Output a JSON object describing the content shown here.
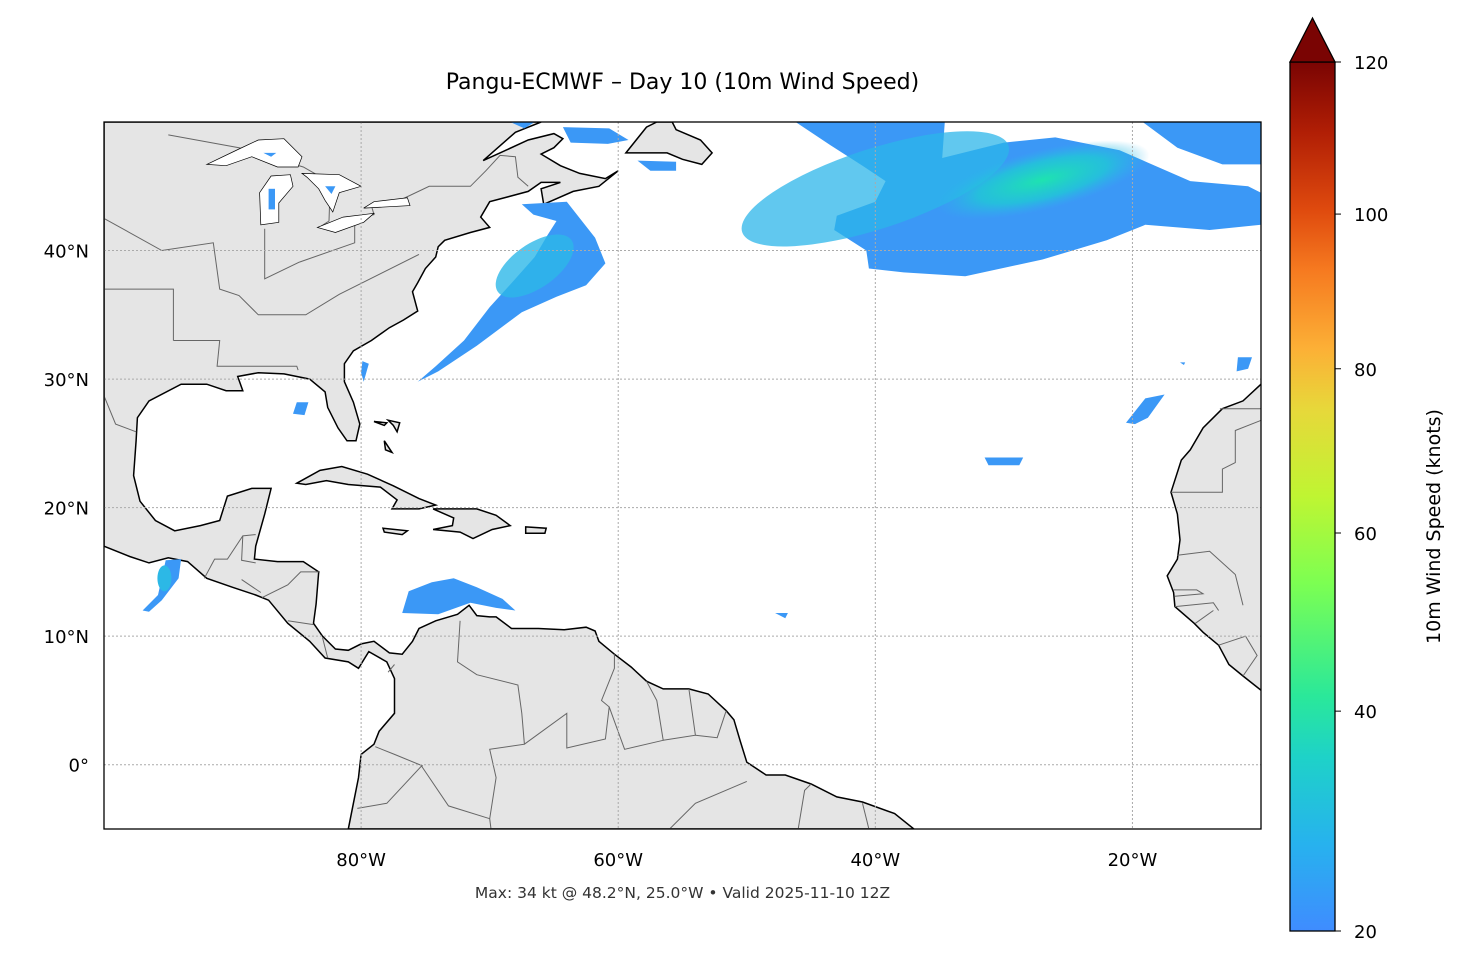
{
  "title": "Pangu-ECMWF – Day 10 (10m Wind Speed)",
  "footer": "Max: 34 kt @ 48.2°N, 25.0°W • Valid 2025-11-10 12Z",
  "map": {
    "projection": "PlateCarree",
    "lon_range": [
      -100,
      -10
    ],
    "lat_range": [
      -5,
      50
    ],
    "gridlines": "dotted",
    "land_color": "#e5e5e5",
    "coast_color": "#000000",
    "border_color": "#666666",
    "lon_ticks": [
      {
        "value": -80,
        "label": "80°W"
      },
      {
        "value": -60,
        "label": "60°W"
      },
      {
        "value": -40,
        "label": "40°W"
      },
      {
        "value": -20,
        "label": "20°W"
      }
    ],
    "lat_ticks": [
      {
        "value": 40,
        "label": "40°N"
      },
      {
        "value": 30,
        "label": "30°N"
      },
      {
        "value": 20,
        "label": "20°N"
      },
      {
        "value": 10,
        "label": "10°N"
      },
      {
        "value": 0,
        "label": "0°"
      }
    ],
    "max_wind": {
      "value_kt": 34,
      "lat": 48.2,
      "lon": -25.0
    }
  },
  "colorbar": {
    "label": "10m Wind Speed (knots)",
    "range": [
      20,
      120
    ],
    "extend": "max",
    "colormap": "turbo",
    "ticks": [
      "20",
      "40",
      "60",
      "80",
      "100",
      "120"
    ]
  }
}
